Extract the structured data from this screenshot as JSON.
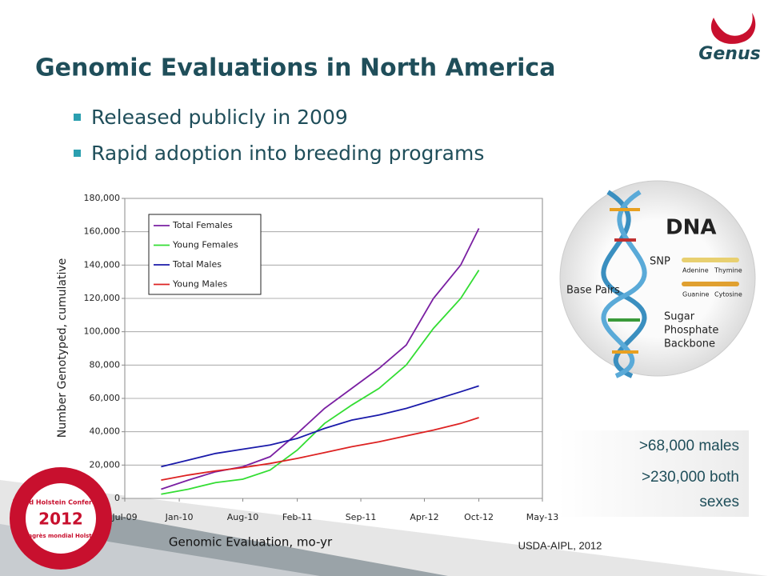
{
  "title": "Genomic Evaluations in North America",
  "bullets": [
    "Released publicly in 2009",
    "Rapid adoption into breeding programs"
  ],
  "logo": "Genus",
  "dna_figure": {
    "title": "DNA",
    "snp": "SNP",
    "base_pairs": "Base Pairs",
    "adenine": "Adenine",
    "thymine": "Thymine",
    "guanine": "Guanine",
    "cytosine": "Cytosine",
    "backbone": [
      "Sugar",
      "Phosphate",
      "Backbone"
    ]
  },
  "callout": [
    ">68,000 males",
    ">230,000 both",
    "sexes"
  ],
  "source": "USDA-AIPL, 2012",
  "conference_logo": {
    "top": "World Holstein Conference",
    "year": "2012",
    "bottom": "Congrès mondial Holstein"
  },
  "chart_data": {
    "type": "line",
    "xlabel": "Genomic Evaluation, mo-yr",
    "ylabel": "Number Genotyped, cumulative",
    "x": [
      "Nov-09",
      "Feb-10",
      "May-10",
      "Aug-10",
      "Nov-10",
      "Feb-11",
      "May-11",
      "Aug-11",
      "Nov-11",
      "Feb-12",
      "May-12",
      "Aug-12",
      "Oct-12"
    ],
    "series": [
      {
        "name": "Total Females",
        "color": "#7a1fa2",
        "values": [
          5500,
          11000,
          16000,
          19000,
          25000,
          39000,
          54000,
          66000,
          78000,
          92000,
          120000,
          140000,
          162000
        ]
      },
      {
        "name": "Young Females",
        "color": "#33dd33",
        "values": [
          2500,
          5500,
          9500,
          11500,
          17000,
          29000,
          45000,
          56000,
          66000,
          80000,
          102000,
          120000,
          137000
        ]
      },
      {
        "name": "Total Males",
        "color": "#1a1aaa",
        "values": [
          19000,
          23000,
          27000,
          29500,
          32000,
          36000,
          42000,
          47000,
          50000,
          54000,
          59000,
          64000,
          67500
        ]
      },
      {
        "name": "Young Males",
        "color": "#dd2222",
        "values": [
          11000,
          14000,
          16500,
          18500,
          21000,
          24000,
          27500,
          31000,
          34000,
          37500,
          41000,
          45000,
          48500
        ]
      }
    ],
    "xlim": [
      "Jul-09",
      "May-13"
    ],
    "xticks": [
      "Jul-09",
      "Jan-10",
      "Aug-10",
      "Feb-11",
      "Sep-11",
      "Apr-12",
      "Oct-12",
      "May-13"
    ],
    "ylim": [
      0,
      180000
    ],
    "yticks": [
      0,
      {
        "value": 20000,
        "label": "20,000"
      },
      {
        "value": 40000,
        "label": "40,000"
      },
      {
        "value": 60000,
        "label": "60,000"
      },
      {
        "value": 80000,
        "label": "80,000"
      },
      {
        "value": 100000,
        "label": "100,000"
      },
      {
        "value": 120000,
        "label": "120,000"
      },
      {
        "value": 140000,
        "label": "140,000"
      },
      {
        "value": 160000,
        "label": "160,000"
      },
      {
        "value": 180000,
        "label": "180,000"
      }
    ],
    "grid": true,
    "legend": "upper left"
  }
}
